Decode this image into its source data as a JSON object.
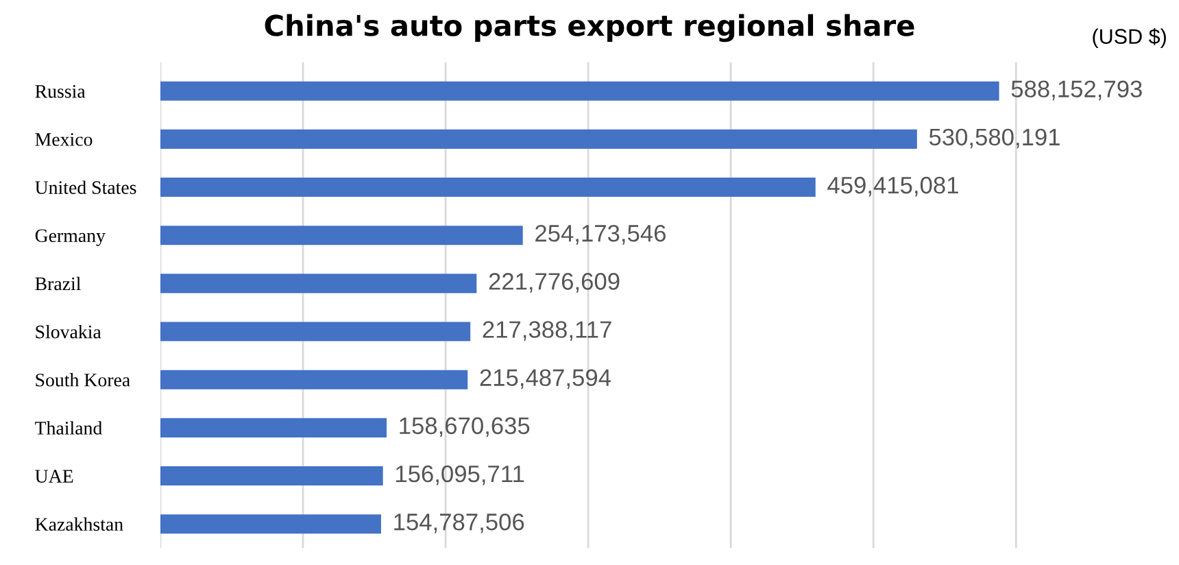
{
  "chart_data": {
    "type": "bar",
    "orientation": "horizontal",
    "title": "China's auto parts export regional share",
    "annotations": [
      "(USD $)"
    ],
    "categories": [
      "Russia",
      "Mexico",
      "United States",
      "Germany",
      "Brazil",
      "Slovakia",
      "South Korea",
      "Thailand",
      "UAE",
      "Kazakhstan"
    ],
    "series": [
      {
        "color": "#4472c4",
        "values": [
          588152793,
          530580191,
          459415081,
          254173546,
          221776609,
          217388117,
          215487594,
          158670635,
          156095711,
          154787506
        ],
        "value_labels": [
          "588,152,793",
          "530,580,191",
          "459,415,081",
          "254,173,546",
          "221,776,609",
          "217,388,117",
          "215,487,594",
          "158,670,635",
          "156,095,711",
          "154,787,506"
        ]
      }
    ],
    "tick_labels": "y",
    "grid": "x"
  }
}
